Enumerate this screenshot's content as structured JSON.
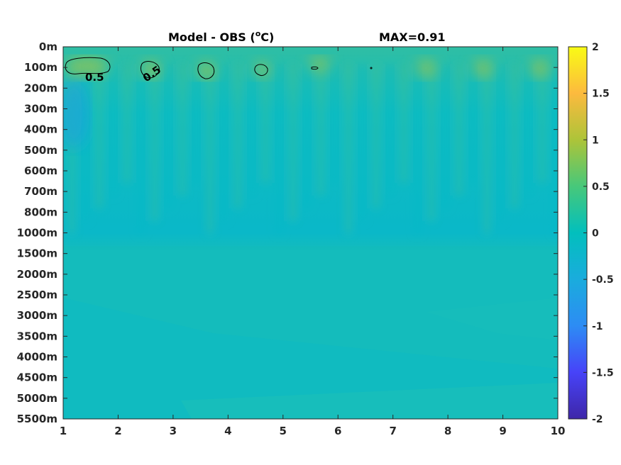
{
  "chart_data": {
    "type": "heatmap",
    "title": "Model - OBS (°C)",
    "title_parts": {
      "main": "Model - OBS (",
      "sup": "o",
      "tail": "C)"
    },
    "max_annotation": "MAX=0.91",
    "x_ticks": [
      "1",
      "2",
      "3",
      "4",
      "5",
      "6",
      "7",
      "8",
      "9",
      "10"
    ],
    "x_range": [
      1,
      10
    ],
    "y_ticks": [
      "0m",
      "100m",
      "200m",
      "300m",
      "400m",
      "500m",
      "600m",
      "700m",
      "800m",
      "1000m",
      "1500m",
      "2000m",
      "2500m",
      "3000m",
      "3500m",
      "4000m",
      "4500m",
      "5000m",
      "5500m"
    ],
    "y_reversed": true,
    "colorbar": {
      "range": [
        -2,
        2
      ],
      "ticks": [
        "2",
        "1.5",
        "1",
        "0.5",
        "0",
        "-0.5",
        "-1",
        "-1.5",
        "-2"
      ],
      "colormap": "parula",
      "stops": [
        "#3e26a8",
        "#4743f8",
        "#2d8cf4",
        "#1aacdd",
        "#02bfbd",
        "#47c87a",
        "#adc439",
        "#fcba3e",
        "#f9fb15"
      ]
    },
    "field_colors": {
      "near_zero": "#0cbac6",
      "deep": "#14bcbc",
      "warm": "#52c288",
      "cool": "#1ca6d8"
    },
    "contours": [
      {
        "level": 0.5,
        "label": "0.5",
        "x": 1.5,
        "depth": "100m"
      },
      {
        "level": 0.5,
        "label": "0.5",
        "x": 2.7,
        "depth": "100m"
      }
    ],
    "grid": false
  }
}
